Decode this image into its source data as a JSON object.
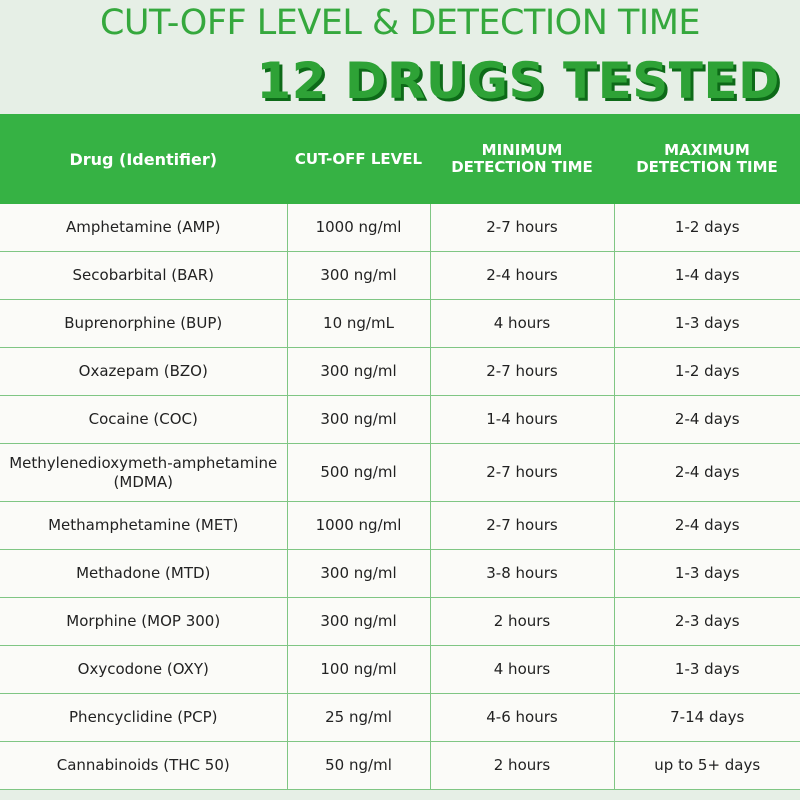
{
  "header": {
    "title_line1": "CUT-OFF LEVEL & DETECTION TIME",
    "title_line2": "12 DRUGS TESTED"
  },
  "table": {
    "columns": [
      "Drug (Identifier)",
      "CUT-OFF LEVEL",
      "MINIMUM DETECTION TIME",
      "MAXIMUM DETECTION TIME"
    ],
    "rows": [
      {
        "drug": "Amphetamine (AMP)",
        "cutoff": "1000 ng/ml",
        "min": "2-7 hours",
        "max": "1-2 days"
      },
      {
        "drug": "Secobarbital (BAR)",
        "cutoff": "300 ng/ml",
        "min": "2-4 hours",
        "max": "1-4 days"
      },
      {
        "drug": "Buprenorphine (BUP)",
        "cutoff": "10 ng/mL",
        "min": "4 hours",
        "max": "1-3 days"
      },
      {
        "drug": "Oxazepam (BZO)",
        "cutoff": "300 ng/ml",
        "min": "2-7 hours",
        "max": "1-2 days"
      },
      {
        "drug": "Cocaine (COC)",
        "cutoff": "300 ng/ml",
        "min": "1-4 hours",
        "max": "2-4 days"
      },
      {
        "drug": "Methylenedioxymeth-amphetamine (MDMA)",
        "cutoff": "500 ng/ml",
        "min": "2-7 hours",
        "max": "2-4 days"
      },
      {
        "drug": "Methamphetamine (MET)",
        "cutoff": "1000 ng/ml",
        "min": "2-7 hours",
        "max": "2-4 days"
      },
      {
        "drug": "Methadone (MTD)",
        "cutoff": "300 ng/ml",
        "min": "3-8 hours",
        "max": "1-3 days"
      },
      {
        "drug": "Morphine (MOP 300)",
        "cutoff": "300 ng/ml",
        "min": "2 hours",
        "max": "2-3 days"
      },
      {
        "drug": "Oxycodone (OXY)",
        "cutoff": "100 ng/ml",
        "min": "4 hours",
        "max": "1-3 days"
      },
      {
        "drug": "Phencyclidine (PCP)",
        "cutoff": "25 ng/ml",
        "min": "4-6 hours",
        "max": "7-14 days"
      },
      {
        "drug": "Cannabinoids (THC 50)",
        "cutoff": "50 ng/ml",
        "min": "2 hours",
        "max": "up to 5+ days"
      }
    ]
  },
  "colors": {
    "accent_green": "#36b244",
    "title_green": "#35a83d",
    "shadow_green": "#0d6a18",
    "background": "#e6efe6",
    "cell_background": "#fbfbf8",
    "grid_line": "#7fc684"
  }
}
